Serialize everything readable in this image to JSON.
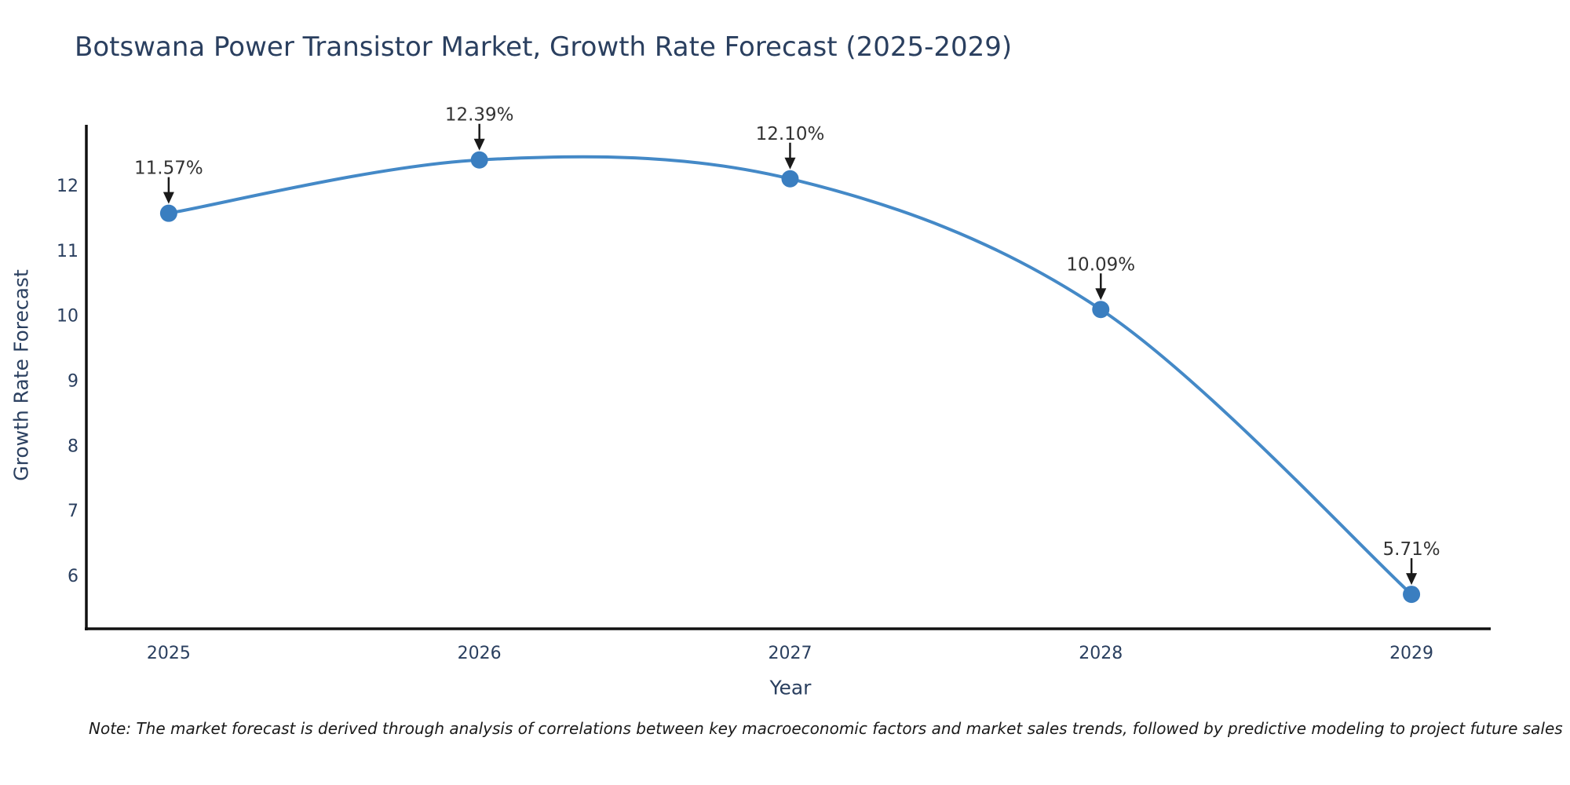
{
  "chart_data": {
    "type": "line",
    "title": "Botswana Power Transistor Market, Growth Rate Forecast (2025-2029)",
    "xlabel": "Year",
    "ylabel": "Growth Rate Forecast",
    "note": "Note: The market forecast is derived through analysis of correlations between key macroeconomic factors and market sales trends, followed by predictive modeling to project future sales",
    "x": [
      2025,
      2026,
      2027,
      2028,
      2029
    ],
    "values": [
      11.57,
      12.39,
      12.1,
      10.09,
      5.71
    ],
    "point_labels": [
      "11.57%",
      "12.39%",
      "12.10%",
      "10.09%",
      "5.71%"
    ],
    "xticks": [
      "2025",
      "2026",
      "2027",
      "2028",
      "2029"
    ],
    "yticks": [
      6,
      7,
      8,
      9,
      10,
      11,
      12
    ],
    "xlim": [
      2024.735,
      2029.255
    ],
    "ylim": [
      5.18,
      12.93
    ],
    "grid": false,
    "legend": "none",
    "line_shape": "spline",
    "colors": {
      "line": "#4489c7",
      "marker": "#3a7ec0",
      "axis": "#111111",
      "tick_text": "#2a3f5f",
      "annotation_text": "#333333",
      "annotation_arrow": "#1a1a1a"
    }
  }
}
